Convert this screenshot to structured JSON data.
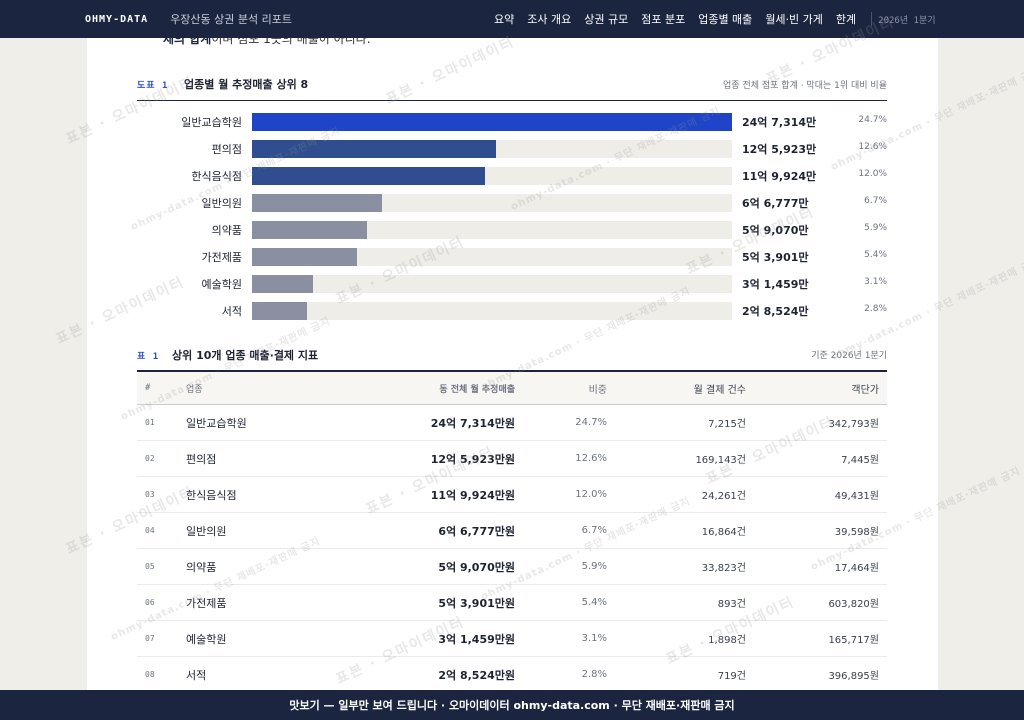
{
  "topbar": {
    "brand": "OHMY-DATA",
    "report_title": "우장산동 상권 분석 리포트",
    "nav": [
      "요약",
      "조사 개요",
      "상권 규모",
      "점포 분포",
      "업종별 매출",
      "월세·빈 가게",
      "한계"
    ],
    "date": "2026년 1분기"
  },
  "cut_text": {
    "bold": "제의 합계",
    "rest": "이며 점포 1곳의 매출이 아니다."
  },
  "figure": {
    "tag": "도표 1",
    "title": "업종별 월 추정매출 상위 8",
    "note": "업종 전체 점포 합계 · 막대는 1위 대비 비율",
    "bars": [
      {
        "label": "일반교습학원",
        "value": "24억 7,314만",
        "pct": "24.7%",
        "ratio": 1.0,
        "color": "#1f44c7"
      },
      {
        "label": "편의점",
        "value": "12억 5,923만",
        "pct": "12.6%",
        "ratio": 0.509,
        "color": "#2f4d8f"
      },
      {
        "label": "한식음식점",
        "value": "11억 9,924만",
        "pct": "12.0%",
        "ratio": 0.485,
        "color": "#2f4d8f"
      },
      {
        "label": "일반의원",
        "value": "6억 6,777만",
        "pct": "6.7%",
        "ratio": 0.27,
        "color": "#8a90a2"
      },
      {
        "label": "의약품",
        "value": "5억 9,070만",
        "pct": "5.9%",
        "ratio": 0.239,
        "color": "#8a90a2"
      },
      {
        "label": "가전제품",
        "value": "5억 3,901만",
        "pct": "5.4%",
        "ratio": 0.218,
        "color": "#8a90a2"
      },
      {
        "label": "예술학원",
        "value": "3억 1,459만",
        "pct": "3.1%",
        "ratio": 0.127,
        "color": "#8a90a2"
      },
      {
        "label": "서적",
        "value": "2억 8,524만",
        "pct": "2.8%",
        "ratio": 0.115,
        "color": "#8a90a2"
      }
    ]
  },
  "table": {
    "tag": "표 1",
    "title": "상위 10개 업종 매출·결제 지표",
    "note": "기준 2026년 1분기",
    "columns": [
      "#",
      "업종",
      "동 전체 월 추정매출",
      "비중",
      "월 결제 건수",
      "객단가"
    ],
    "rows": [
      [
        "01",
        "일반교습학원",
        "24억 7,314만원",
        "24.7%",
        "7,215건",
        "342,793원"
      ],
      [
        "02",
        "편의점",
        "12억 5,923만원",
        "12.6%",
        "169,143건",
        "7,445원"
      ],
      [
        "03",
        "한식음식점",
        "11억 9,924만원",
        "12.0%",
        "24,261건",
        "49,431원"
      ],
      [
        "04",
        "일반의원",
        "6억 6,777만원",
        "6.7%",
        "16,864건",
        "39,598원"
      ],
      [
        "05",
        "의약품",
        "5억 9,070만원",
        "5.9%",
        "33,823건",
        "17,464원"
      ],
      [
        "06",
        "가전제품",
        "5억 3,901만원",
        "5.4%",
        "893건",
        "603,820원"
      ],
      [
        "07",
        "예술학원",
        "3억 1,459만원",
        "3.1%",
        "1,898건",
        "165,717원"
      ],
      [
        "08",
        "서적",
        "2억 8,524만원",
        "2.8%",
        "719건",
        "396,895원"
      ]
    ]
  },
  "watermark": {
    "main": "표본 · 오마이데이터",
    "sub": "ohmy-data.com · 무단 재배포·재판매 금지"
  },
  "bottom_banner": "맛보기 — 일부만 보여 드립니다 · 오마이데이터 ohmy-data.com · 무단 재배포·재판매 금지"
}
